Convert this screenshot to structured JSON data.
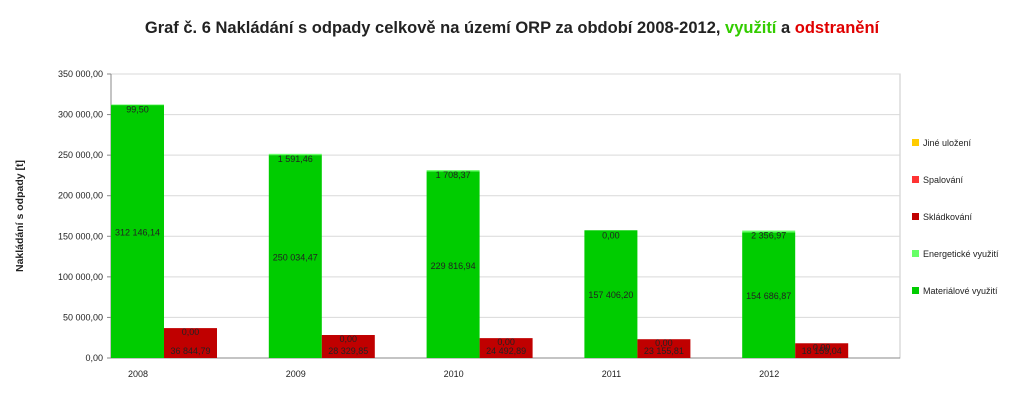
{
  "title": {
    "main": "Graf č. 6 Nakládání s odpady celkově na území ORP za období 2008-2012, ",
    "part_green": "využití",
    "joiner": " a ",
    "part_red": "odstranění"
  },
  "colors": {
    "material": "#00cc00",
    "energy": "#66ff66",
    "landfill": "#c00000",
    "incineration": "#ff3333",
    "other": "#ffcc00",
    "title_green": "#33cc00",
    "title_red": "#e00000"
  },
  "chart_data": {
    "type": "bar",
    "stacked": true,
    "grouped": true,
    "ylabel": "Nakládání s odpady [t]",
    "ylim": [
      0,
      350000
    ],
    "yticks": [
      "0,00",
      "50 000,00",
      "100 000,00",
      "150 000,00",
      "200 000,00",
      "250 000,00",
      "300 000,00",
      "350 000,00"
    ],
    "categories": [
      "2008",
      "2009",
      "2010",
      "2011",
      "2012"
    ],
    "legend_position": "right",
    "legend": [
      "Jiné uložení",
      "Spalování",
      "Skládkování",
      "Energetické využití",
      "Materiálové využití"
    ],
    "series": [
      {
        "name": "Materiálové využití",
        "group": "využití",
        "values": [
          312146.14,
          250034.47,
          229816.94,
          157406.2,
          154686.87
        ],
        "labels": [
          "312 146,14",
          "250 034,47",
          "229 816,94",
          "157 406,20",
          "154 686,87"
        ]
      },
      {
        "name": "Energetické využití",
        "group": "využití",
        "values": [
          99.5,
          1591.46,
          1708.37,
          0.0,
          2356.97
        ],
        "labels": [
          "99,50",
          "1 591,46",
          "1 708,37",
          "0,00",
          "2 356,97"
        ]
      },
      {
        "name": "Skládkování",
        "group": "odstranění",
        "values": [
          36844.79,
          28329.85,
          24492.89,
          23155.81,
          18159.04
        ],
        "labels": [
          "36 844,79",
          "28 329,85",
          "24 492,89",
          "23 155,81",
          "18 159,04"
        ]
      },
      {
        "name": "Spalování",
        "group": "odstranění",
        "values": [
          0.0,
          0.0,
          0.0,
          0.0,
          0.0
        ],
        "labels": [
          "0,00",
          "0,00",
          "0,00",
          "0,00",
          "0,00"
        ]
      },
      {
        "name": "Jiné uložení",
        "group": "odstranění",
        "values": [
          0,
          0,
          0,
          0,
          0
        ],
        "labels": []
      }
    ]
  }
}
